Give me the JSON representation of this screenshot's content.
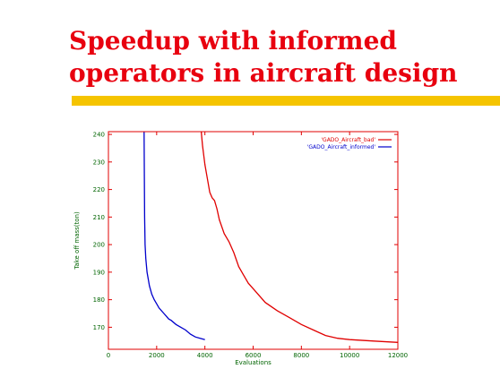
{
  "slide": {
    "title_line1": "Speedup with informed",
    "title_line2": "operators in aircraft design"
  },
  "colors": {
    "title": "#e8000f",
    "rule": "#f5c400",
    "axis_frame": "#e00000",
    "tick_labels": "#006400",
    "series_bad": "#e00000",
    "series_informed": "#0000cc"
  },
  "chart_data": {
    "type": "line",
    "xlabel": "Evaluations",
    "ylabel": "Take off mass(ton)",
    "xlim": [
      0,
      12000
    ],
    "ylim": [
      162,
      241
    ],
    "xticks": [
      0,
      2000,
      4000,
      6000,
      8000,
      10000,
      12000
    ],
    "yticks": [
      170,
      180,
      190,
      200,
      210,
      220,
      230,
      240
    ],
    "grid": false,
    "legend_position": "top-right",
    "series": [
      {
        "name": "'GADO_Aircraft_bad'",
        "color": "#e00000",
        "x": [
          3850,
          3900,
          4000,
          4100,
          4200,
          4300,
          4400,
          4500,
          4600,
          4800,
          5000,
          5200,
          5400,
          5600,
          5800,
          6000,
          6500,
          7000,
          7500,
          8000,
          8500,
          9000,
          9500,
          10000,
          11000,
          12000
        ],
        "y": [
          241,
          236,
          229,
          224,
          219,
          217,
          216,
          213,
          209,
          204,
          201,
          197,
          192,
          189,
          186,
          184,
          179,
          176,
          173.5,
          171,
          169,
          167,
          166,
          165.5,
          165,
          164.5
        ]
      },
      {
        "name": "'GADO_Aircraft_informed'",
        "color": "#0000cc",
        "x": [
          1480,
          1490,
          1500,
          1520,
          1550,
          1600,
          1700,
          1800,
          1900,
          2000,
          2100,
          2200,
          2300,
          2400,
          2500,
          2600,
          2800,
          3000,
          3200,
          3400,
          3600,
          3800,
          4000
        ],
        "y": [
          241,
          225,
          210,
          200,
          195,
          190,
          185,
          182,
          180,
          178.5,
          177,
          176,
          175,
          174,
          173,
          172.5,
          171,
          170,
          169,
          167.5,
          166.5,
          166,
          165.5
        ]
      }
    ]
  }
}
